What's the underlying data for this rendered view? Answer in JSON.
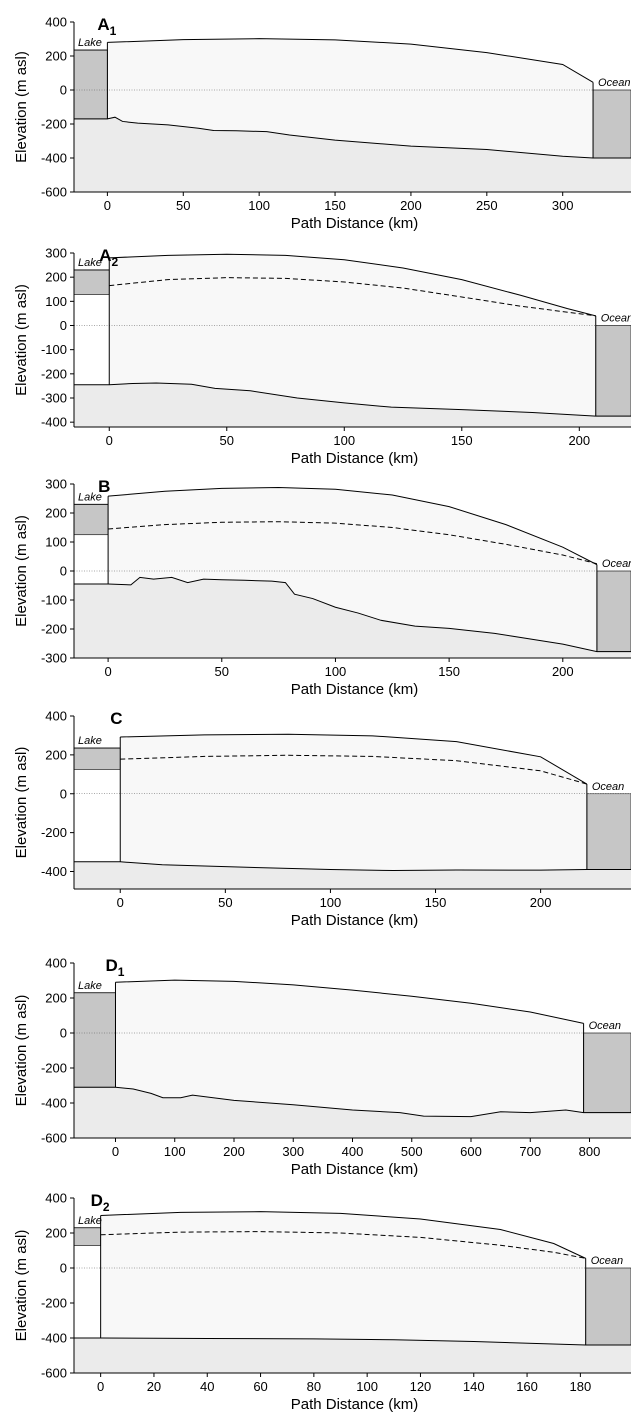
{
  "chart_data": [
    {
      "type": "area",
      "panel_label": "A",
      "panel_sub": "1",
      "xlabel": "Path Distance (km)",
      "ylabel": "Elevation (m asl)",
      "xlim": [
        -22,
        345
      ],
      "ylim": [
        -600,
        400
      ],
      "x_ticks": [
        0,
        50,
        100,
        150,
        200,
        250,
        300
      ],
      "y_ticks": [
        -600,
        -400,
        -200,
        0,
        200,
        400
      ],
      "lake_label": "Lake",
      "ocean_label": "Ocean",
      "lake_surface": 235,
      "lake_floor": -170,
      "ocean_floor": -400,
      "sea_level": 0,
      "ice_surface": [
        [
          0,
          280
        ],
        [
          50,
          296
        ],
        [
          100,
          302
        ],
        [
          150,
          295
        ],
        [
          200,
          270
        ],
        [
          250,
          220
        ],
        [
          300,
          150
        ],
        [
          320,
          45
        ]
      ],
      "inner_surface": [],
      "bed": [
        [
          -22,
          -170
        ],
        [
          0,
          -170
        ],
        [
          5,
          -160
        ],
        [
          10,
          -185
        ],
        [
          20,
          -195
        ],
        [
          40,
          -205
        ],
        [
          60,
          -225
        ],
        [
          70,
          -238
        ],
        [
          85,
          -240
        ],
        [
          105,
          -245
        ],
        [
          120,
          -265
        ],
        [
          150,
          -295
        ],
        [
          200,
          -330
        ],
        [
          250,
          -350
        ],
        [
          300,
          -390
        ],
        [
          320,
          -400
        ],
        [
          345,
          -400
        ]
      ]
    },
    {
      "type": "area",
      "panel_label": "A",
      "panel_sub": "2",
      "xlabel": "Path Distance (km)",
      "ylabel": "Elevation (m asl)",
      "xlim": [
        -15,
        222
      ],
      "ylim": [
        -420,
        300
      ],
      "x_ticks": [
        0,
        50,
        100,
        150,
        200
      ],
      "y_ticks": [
        -400,
        -300,
        -200,
        -100,
        0,
        100,
        200,
        300
      ],
      "lake_label": "Lake",
      "ocean_label": "Ocean",
      "lake_surface": 230,
      "lake_floor": 128,
      "ocean_floor": -375,
      "sea_level": 0,
      "ice_surface": [
        [
          0,
          280
        ],
        [
          25,
          290
        ],
        [
          50,
          295
        ],
        [
          75,
          290
        ],
        [
          100,
          272
        ],
        [
          125,
          238
        ],
        [
          150,
          190
        ],
        [
          175,
          125
        ],
        [
          195,
          70
        ],
        [
          207,
          40
        ]
      ],
      "inner_surface": [
        [
          0,
          165
        ],
        [
          25,
          190
        ],
        [
          50,
          198
        ],
        [
          75,
          195
        ],
        [
          100,
          180
        ],
        [
          125,
          155
        ],
        [
          150,
          118
        ],
        [
          175,
          80
        ],
        [
          207,
          40
        ]
      ],
      "bed": [
        [
          -15,
          -245
        ],
        [
          0,
          -245
        ],
        [
          10,
          -240
        ],
        [
          20,
          -238
        ],
        [
          35,
          -243
        ],
        [
          45,
          -260
        ],
        [
          60,
          -270
        ],
        [
          80,
          -300
        ],
        [
          100,
          -320
        ],
        [
          120,
          -338
        ],
        [
          150,
          -348
        ],
        [
          180,
          -360
        ],
        [
          207,
          -375
        ],
        [
          222,
          -375
        ]
      ]
    },
    {
      "type": "area",
      "panel_label": "B",
      "panel_sub": "",
      "xlabel": "Path Distance (km)",
      "ylabel": "Elevation (m asl)",
      "xlim": [
        -15,
        230
      ],
      "ylim": [
        -300,
        300
      ],
      "x_ticks": [
        0,
        50,
        100,
        150,
        200
      ],
      "y_ticks": [
        -300,
        -200,
        -100,
        0,
        100,
        200,
        300
      ],
      "lake_label": "Lake",
      "ocean_label": "Ocean",
      "lake_surface": 230,
      "lake_floor": 125,
      "ocean_floor": -278,
      "sea_level": 0,
      "ice_surface": [
        [
          0,
          258
        ],
        [
          25,
          275
        ],
        [
          50,
          285
        ],
        [
          75,
          288
        ],
        [
          100,
          282
        ],
        [
          125,
          262
        ],
        [
          150,
          222
        ],
        [
          175,
          160
        ],
        [
          200,
          82
        ],
        [
          215,
          22
        ]
      ],
      "inner_surface": [
        [
          0,
          145
        ],
        [
          25,
          160
        ],
        [
          50,
          168
        ],
        [
          75,
          170
        ],
        [
          100,
          165
        ],
        [
          125,
          150
        ],
        [
          150,
          125
        ],
        [
          175,
          92
        ],
        [
          200,
          55
        ],
        [
          215,
          25
        ]
      ],
      "bed": [
        [
          -15,
          -45
        ],
        [
          0,
          -45
        ],
        [
          10,
          -48
        ],
        [
          14,
          -22
        ],
        [
          20,
          -28
        ],
        [
          28,
          -22
        ],
        [
          35,
          -40
        ],
        [
          42,
          -28
        ],
        [
          50,
          -30
        ],
        [
          60,
          -32
        ],
        [
          72,
          -35
        ],
        [
          78,
          -40
        ],
        [
          82,
          -80
        ],
        [
          90,
          -95
        ],
        [
          100,
          -125
        ],
        [
          110,
          -145
        ],
        [
          120,
          -170
        ],
        [
          135,
          -190
        ],
        [
          150,
          -198
        ],
        [
          170,
          -215
        ],
        [
          200,
          -252
        ],
        [
          215,
          -278
        ],
        [
          230,
          -278
        ]
      ]
    },
    {
      "type": "area",
      "panel_label": "C",
      "panel_sub": "",
      "xlabel": "Path Distance (km)",
      "ylabel": "Elevation (m asl)",
      "xlim": [
        -22,
        243
      ],
      "ylim": [
        -490,
        400
      ],
      "x_ticks": [
        0,
        50,
        100,
        150,
        200
      ],
      "y_ticks": [
        -400,
        -200,
        0,
        200,
        400
      ],
      "lake_label": "Lake",
      "ocean_label": "Ocean",
      "lake_surface": 235,
      "lake_floor": 125,
      "ocean_floor": -390,
      "sea_level": 0,
      "ice_surface": [
        [
          0,
          292
        ],
        [
          40,
          303
        ],
        [
          80,
          306
        ],
        [
          120,
          298
        ],
        [
          160,
          268
        ],
        [
          200,
          190
        ],
        [
          222,
          50
        ]
      ],
      "inner_surface": [
        [
          0,
          178
        ],
        [
          40,
          192
        ],
        [
          80,
          198
        ],
        [
          120,
          192
        ],
        [
          160,
          170
        ],
        [
          200,
          118
        ],
        [
          222,
          50
        ]
      ],
      "bed": [
        [
          -22,
          -350
        ],
        [
          0,
          -350
        ],
        [
          20,
          -365
        ],
        [
          50,
          -375
        ],
        [
          100,
          -390
        ],
        [
          130,
          -395
        ],
        [
          160,
          -392
        ],
        [
          200,
          -393
        ],
        [
          222,
          -390
        ],
        [
          243,
          -390
        ]
      ]
    },
    {
      "type": "area",
      "panel_label": "D",
      "panel_sub": "1",
      "xlabel": "Path Distance (km)",
      "ylabel": "Elevation (m asl)",
      "xlim": [
        -70,
        870
      ],
      "ylim": [
        -600,
        400
      ],
      "x_ticks": [
        0,
        100,
        200,
        300,
        400,
        500,
        600,
        700,
        800
      ],
      "y_ticks": [
        -600,
        -400,
        -200,
        0,
        200,
        400
      ],
      "lake_label": "Lake",
      "ocean_label": "Ocean",
      "lake_surface": 230,
      "lake_floor": -310,
      "ocean_floor": -455,
      "sea_level": 0,
      "ice_surface": [
        [
          0,
          290
        ],
        [
          100,
          302
        ],
        [
          200,
          295
        ],
        [
          300,
          275
        ],
        [
          400,
          245
        ],
        [
          500,
          210
        ],
        [
          600,
          170
        ],
        [
          700,
          120
        ],
        [
          790,
          55
        ]
      ],
      "inner_surface": [],
      "bed": [
        [
          -70,
          -310
        ],
        [
          0,
          -310
        ],
        [
          30,
          -320
        ],
        [
          60,
          -345
        ],
        [
          80,
          -370
        ],
        [
          110,
          -370
        ],
        [
          130,
          -355
        ],
        [
          200,
          -385
        ],
        [
          300,
          -410
        ],
        [
          400,
          -440
        ],
        [
          480,
          -455
        ],
        [
          520,
          -475
        ],
        [
          600,
          -478
        ],
        [
          650,
          -450
        ],
        [
          700,
          -455
        ],
        [
          760,
          -440
        ],
        [
          790,
          -455
        ],
        [
          870,
          -455
        ]
      ]
    },
    {
      "type": "area",
      "panel_label": "D",
      "panel_sub": "2",
      "xlabel": "Path Distance (km)",
      "ylabel": "Elevation (m asl)",
      "xlim": [
        -10,
        199
      ],
      "ylim": [
        -600,
        400
      ],
      "x_ticks": [
        0,
        20,
        40,
        60,
        80,
        100,
        120,
        140,
        160,
        180
      ],
      "y_ticks": [
        -600,
        -400,
        -200,
        0,
        200,
        400
      ],
      "lake_label": "Lake",
      "ocean_label": "Ocean",
      "lake_surface": 230,
      "lake_floor": 128,
      "ocean_floor": -440,
      "sea_level": 0,
      "ice_surface": [
        [
          0,
          300
        ],
        [
          30,
          318
        ],
        [
          60,
          322
        ],
        [
          90,
          312
        ],
        [
          120,
          280
        ],
        [
          150,
          220
        ],
        [
          170,
          140
        ],
        [
          182,
          55
        ]
      ],
      "inner_surface": [
        [
          0,
          190
        ],
        [
          30,
          205
        ],
        [
          60,
          208
        ],
        [
          90,
          200
        ],
        [
          120,
          175
        ],
        [
          150,
          130
        ],
        [
          170,
          90
        ],
        [
          182,
          55
        ]
      ],
      "bed": [
        [
          -10,
          -400
        ],
        [
          0,
          -400
        ],
        [
          40,
          -403
        ],
        [
          80,
          -405
        ],
        [
          110,
          -410
        ],
        [
          140,
          -420
        ],
        [
          182,
          -440
        ],
        [
          199,
          -440
        ]
      ]
    }
  ]
}
